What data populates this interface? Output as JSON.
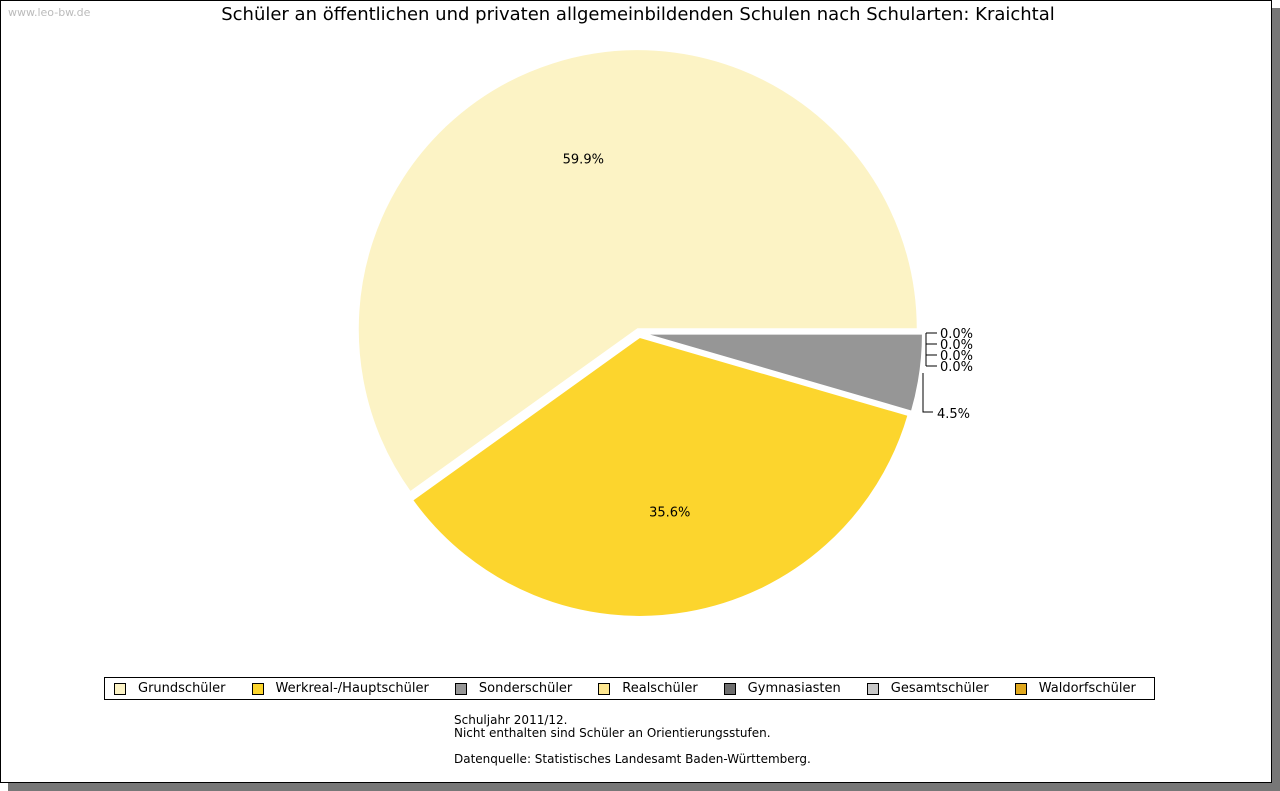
{
  "watermark": "www.leo-bw.de",
  "chart_data": {
    "type": "pie",
    "title": "Schüler an öffentlichen und privaten allgemeinbildenden Schulen nach Schularten: Kraichtal",
    "slices": [
      {
        "name": "Grundschüler",
        "value": 59.9,
        "label": "59.9%",
        "color": "#FCF3C5"
      },
      {
        "name": "Werkreal-/Hauptschüler",
        "value": 35.6,
        "label": "35.6%",
        "color": "#FCD52D"
      },
      {
        "name": "Sonderschüler",
        "value": 4.5,
        "label": "4.5%",
        "color": "#969696"
      },
      {
        "name": "Realschüler",
        "value": 0.0,
        "label": "0.0%",
        "color": "#FDE68F"
      },
      {
        "name": "Gymnasiasten",
        "value": 0.0,
        "label": "0.0%",
        "color": "#6E6E6E"
      },
      {
        "name": "Gesamtschüler",
        "value": 0.0,
        "label": "0.0%",
        "color": "#C8C8C8"
      },
      {
        "name": "Waldorfschüler",
        "value": 0.0,
        "label": "0.0%",
        "color": "#E0A81E"
      }
    ],
    "legend_position": "bottom"
  },
  "notes": {
    "line1": "Schuljahr 2011/12.",
    "line2": "Nicht enthalten sind Schüler an Orientierungsstufen.",
    "line3": "Datenquelle: Statistisches Landesamt Baden-Württemberg."
  }
}
